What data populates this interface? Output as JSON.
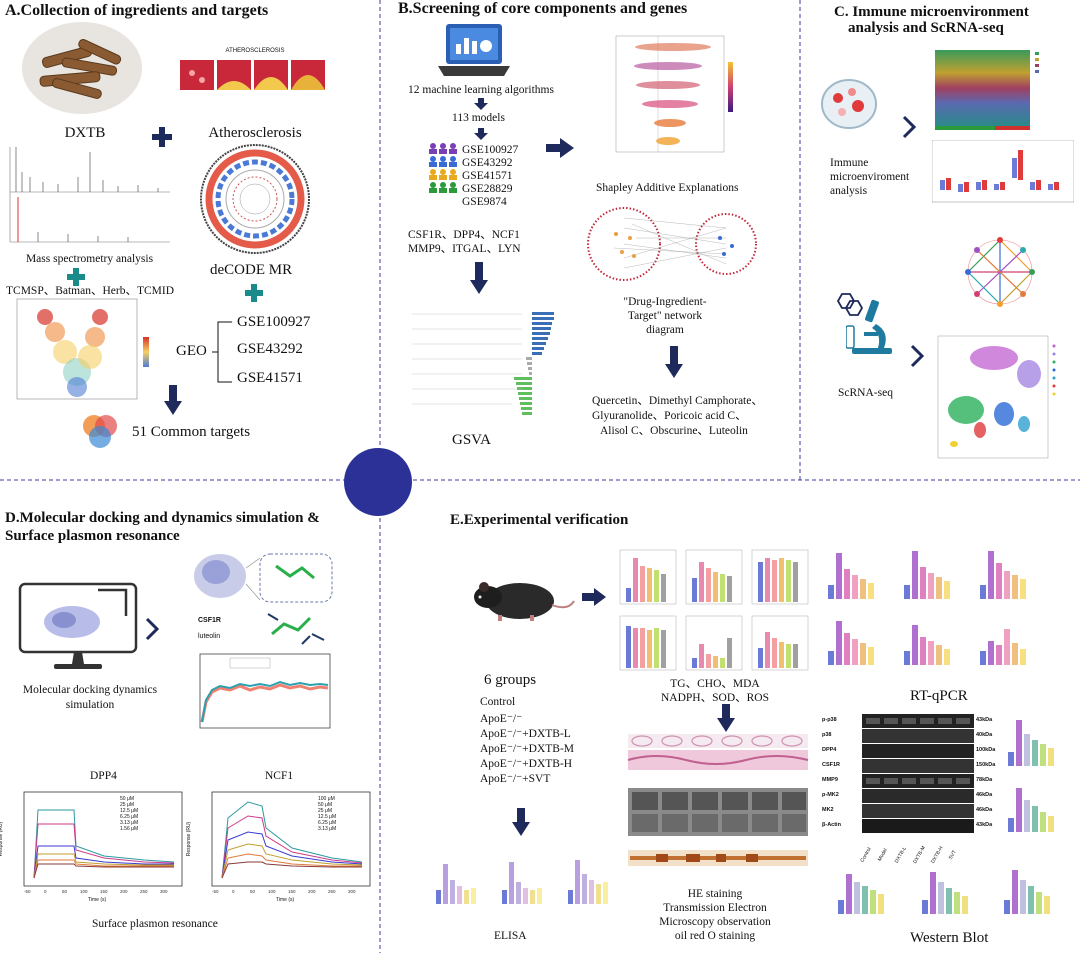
{
  "panelA": {
    "title": "A.Collection of ingredients and targets",
    "dxtb": "DXTB",
    "atherosclerosis": "Atherosclerosis",
    "athero_banner": "ATHEROSCLEROSIS",
    "mass_spec": "Mass spectrometry analysis",
    "databases": "TCMSP、Batman、Herb、TCMID",
    "decode_mr": "deCODE   MR",
    "geo": "GEO",
    "geo_sets": [
      "GSE100927",
      "GSE43292",
      "GSE41571"
    ],
    "common_targets": "51 Common targets"
  },
  "panelB": {
    "title": "B.Screening of core components and genes",
    "ml_algorithms": "12 machine learning algorithms",
    "models": "113 models",
    "datasets": [
      "GSE100927",
      "GSE43292",
      "GSE41571",
      "GSE28829",
      "GSE9874"
    ],
    "genes_line1": "CSF1R、DPP4、NCF1",
    "genes_line2": "MMP9、ITGAL、LYN",
    "shap": "Shapley Additive Explanations",
    "network_line1": "\"Drug-Ingredient-",
    "network_line2": "Target\" network",
    "network_line3": "diagram",
    "gsva": "GSVA",
    "compounds_line1": "Quercetin、Dimethyl Camphorate、",
    "compounds_line2": "Glyuranolide、Poricoic acid C、",
    "compounds_line3": "Alisol C、Obscurine、Luteolin"
  },
  "panelC": {
    "title_line1": "C.  Immune microenvironment",
    "title_line2": "analysis and ScRNA-seq",
    "immune_line1": "Immune",
    "immune_line2": "microenviroment",
    "immune_line3": "analysis",
    "scrna": "ScRNA-seq"
  },
  "panelD": {
    "title_line1": "D.Molecular docking and dynamics simulation &",
    "title_line2": "Surface plasmon resonance",
    "docking_line1": "Molecular docking  dynamics",
    "docking_line2": "simulation",
    "csf1r": "CSF1R",
    "luteolin": "luteolin",
    "dpp4": "DPP4",
    "ncf1": "NCF1",
    "spr": "Surface plasmon resonance",
    "response_label": "Response (RU)",
    "time_label": "Time (s)",
    "dpp4_legend": [
      "50  μM",
      "25  μM",
      "12.5 μM",
      "6.25 μM",
      "3.13 μM",
      "1.56 μM"
    ],
    "ncf1_legend": [
      "100  μM",
      "50  μM",
      "25  μM",
      "12.5 μM",
      "6.25 μM",
      "3.13 μM"
    ]
  },
  "panelE": {
    "title": "E.Experimental verification",
    "groups_title": "6 groups",
    "groups": [
      "Control",
      "ApoE⁻/⁻",
      "ApoE⁻/⁻+DXTB-L",
      "ApoE⁻/⁻+DXTB-M",
      "ApoE⁻/⁻+DXTB-H",
      "ApoE⁻/⁻+SVT"
    ],
    "biochem_line1": "TG、CHO、MDA",
    "biochem_line2": "NADPH、SOD、ROS",
    "rtqpcr": "RT-qPCR",
    "elisa": "ELISA",
    "staining_line1": "HE staining",
    "staining_line2": "Transmission Electron",
    "staining_line3": "Microscopy observation",
    "staining_line4": "oil red O staining",
    "western": "Western Blot",
    "wb_bands": [
      "p-p38",
      "p38",
      "DPP4",
      "CSF1R",
      "MMP9",
      "p-MK2",
      "MK2",
      "β-Actin"
    ],
    "wb_kda": [
      "43kDa",
      "40kDa",
      "100kDa",
      "150kDa",
      "78kDa",
      "46kDa",
      "46kDa",
      "43kDa"
    ],
    "wb_lanes": [
      "Control",
      "Model",
      "DXTB-L",
      "DXTB-M",
      "DXTB-H",
      "SVT"
    ]
  },
  "colors": {
    "arrow": "#1f2a5c",
    "plus": "#1a8a8a",
    "circle": "#2b3196",
    "divider": "#3a3aa0"
  }
}
